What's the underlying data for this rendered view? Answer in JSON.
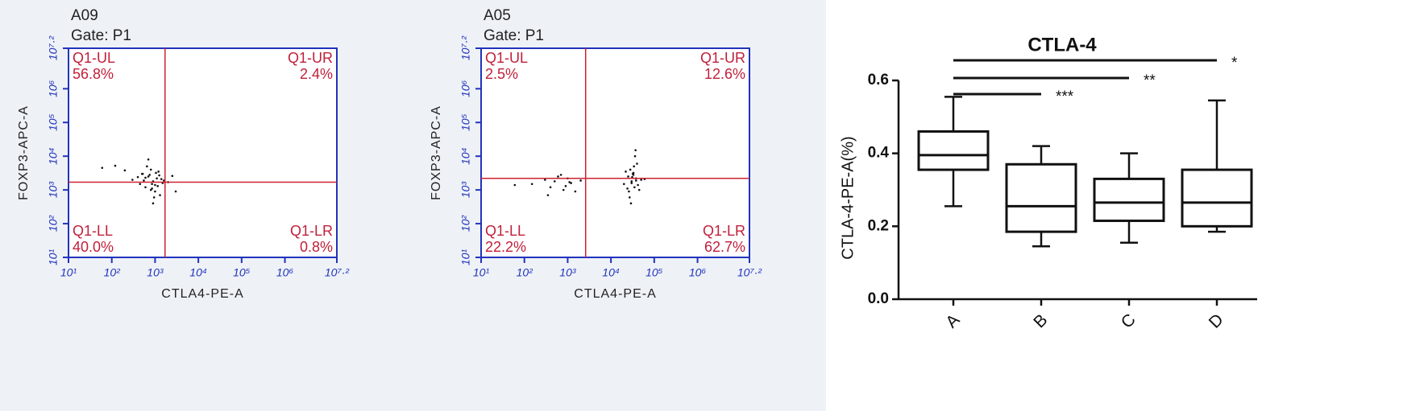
{
  "chart_data": [
    {
      "type": "scatter",
      "title": "A09",
      "subtitle": "Gate: P1",
      "xlabel": "CTLA4-PE-A",
      "ylabel": "FOXP3-APC-A",
      "log": true,
      "color": "#111111",
      "frame_color": "#2233bb",
      "gate_color": "#cc2233",
      "label_color": "#c0203a",
      "xlim": [
        10,
        15848932
      ],
      "ylim": [
        10,
        15848932
      ],
      "xticks": [
        {
          "value": 10,
          "label": "10¹"
        },
        {
          "value": 100,
          "label": "10²"
        },
        {
          "value": 1000,
          "label": "10³"
        },
        {
          "value": 10000,
          "label": "10⁴"
        },
        {
          "value": 100000,
          "label": "10⁵"
        },
        {
          "value": 1000000,
          "label": "10⁶"
        },
        {
          "value": 15848932,
          "label": "10⁷·²"
        }
      ],
      "yticks": [
        {
          "value": 10,
          "label": "10¹"
        },
        {
          "value": 100,
          "label": "10²"
        },
        {
          "value": 1000,
          "label": "10³"
        },
        {
          "value": 10000,
          "label": "10⁴"
        },
        {
          "value": 100000,
          "label": "10⁵"
        },
        {
          "value": 1000000,
          "label": "10⁶"
        },
        {
          "value": 15848932,
          "label": "10⁷·²"
        }
      ],
      "gate_x": 1700,
      "gate_y": 1700,
      "quadrants": {
        "names": [
          "Q1-UL",
          "Q1-UR",
          "Q1-LL",
          "Q1-LR"
        ],
        "values": [
          56.8,
          2.4,
          40.0,
          0.8
        ],
        "value_labels": [
          "56.8%",
          "2.4%",
          "40.0%",
          "0.8%"
        ]
      },
      "x": [
        300,
        450,
        520,
        600,
        700,
        800,
        900,
        1000,
        1100,
        1200,
        1300,
        1500,
        650,
        750,
        850,
        950,
        400,
        550,
        1050,
        1150,
        1400,
        2000,
        2500,
        3000,
        200,
        120,
        60,
        900,
        700,
        800,
        1000,
        600,
        500,
        1250,
        850,
        1600
      ],
      "y": [
        2000,
        1500,
        3000,
        1200,
        2500,
        4000,
        1800,
        900,
        2200,
        3500,
        700,
        1600,
        5000,
        2800,
        1100,
        600,
        2400,
        1900,
        3200,
        1300,
        2100,
        1700,
        2600,
        900,
        3800,
        5200,
        4500,
        400,
        8000,
        1000,
        1400,
        2300,
        3000,
        2700,
        1500,
        1900
      ]
    },
    {
      "type": "scatter",
      "title": "A05",
      "subtitle": "Gate: P1",
      "xlabel": "CTLA4-PE-A",
      "ylabel": "FOXP3-APC-A",
      "log": true,
      "color": "#111111",
      "frame_color": "#2233bb",
      "gate_color": "#cc2233",
      "label_color": "#c0203a",
      "xlim": [
        10,
        15848932
      ],
      "ylim": [
        10,
        15848932
      ],
      "xticks": [
        {
          "value": 10,
          "label": "10¹"
        },
        {
          "value": 100,
          "label": "10²"
        },
        {
          "value": 1000,
          "label": "10³"
        },
        {
          "value": 10000,
          "label": "10⁴"
        },
        {
          "value": 100000,
          "label": "10⁵"
        },
        {
          "value": 1000000,
          "label": "10⁶"
        },
        {
          "value": 15848932,
          "label": "10⁷·²"
        }
      ],
      "yticks": [
        {
          "value": 10,
          "label": "10¹"
        },
        {
          "value": 100,
          "label": "10²"
        },
        {
          "value": 1000,
          "label": "10³"
        },
        {
          "value": 10000,
          "label": "10⁴"
        },
        {
          "value": 100000,
          "label": "10⁵"
        },
        {
          "value": 1000000,
          "label": "10⁶"
        },
        {
          "value": 15848932,
          "label": "10⁷·²"
        }
      ],
      "gate_x": 2600,
      "gate_y": 2200,
      "quadrants": {
        "names": [
          "Q1-UL",
          "Q1-UR",
          "Q1-LL",
          "Q1-LR"
        ],
        "values": [
          2.5,
          12.6,
          22.2,
          62.7
        ],
        "value_labels": [
          "2.5%",
          "12.6%",
          "22.2%",
          "62.7%"
        ]
      },
      "x": [
        150,
        300,
        400,
        500,
        600,
        800,
        1000,
        1200,
        1500,
        700,
        900,
        2000,
        350,
        1100,
        60,
        20000,
        25000,
        28000,
        30000,
        32000,
        35000,
        38000,
        40000,
        45000,
        50000,
        22000,
        26000,
        30000,
        33000,
        36000,
        42000,
        27000,
        31000,
        34000,
        38000,
        29000,
        33000,
        24000,
        37000,
        60000
      ],
      "y": [
        1500,
        2000,
        1200,
        1800,
        2500,
        1000,
        2200,
        1600,
        900,
        2800,
        1300,
        1900,
        700,
        1700,
        1400,
        1500,
        2500,
        4000,
        1800,
        3000,
        1200,
        2200,
        6000,
        1000,
        2000,
        3500,
        900,
        1600,
        2800,
        10000,
        1400,
        600,
        2400,
        5000,
        1900,
        400,
        3200,
        1100,
        15000,
        2100
      ]
    },
    {
      "type": "box",
      "title": "CTLA-4",
      "ylabel": "CTLA-4-PE-A(%)",
      "color": "#111111",
      "categories": [
        "A",
        "B",
        "C",
        "D"
      ],
      "min": [
        0.255,
        0.145,
        0.155,
        0.185
      ],
      "q1": [
        0.355,
        0.185,
        0.215,
        0.2
      ],
      "median": [
        0.395,
        0.255,
        0.265,
        0.265
      ],
      "q3": [
        0.46,
        0.37,
        0.33,
        0.355
      ],
      "max": [
        0.555,
        0.42,
        0.4,
        0.545
      ],
      "ylim": [
        0,
        0.6
      ],
      "yticks": [
        {
          "value": 0,
          "label": "0.0"
        },
        0.2,
        0.4,
        0.6
      ],
      "comparisons": [
        {
          "groups": [
            "A",
            "D"
          ],
          "label": "*"
        },
        {
          "groups": [
            "A",
            "C"
          ],
          "label": "**"
        },
        {
          "groups": [
            "A",
            "B"
          ],
          "label": "***"
        }
      ]
    }
  ]
}
